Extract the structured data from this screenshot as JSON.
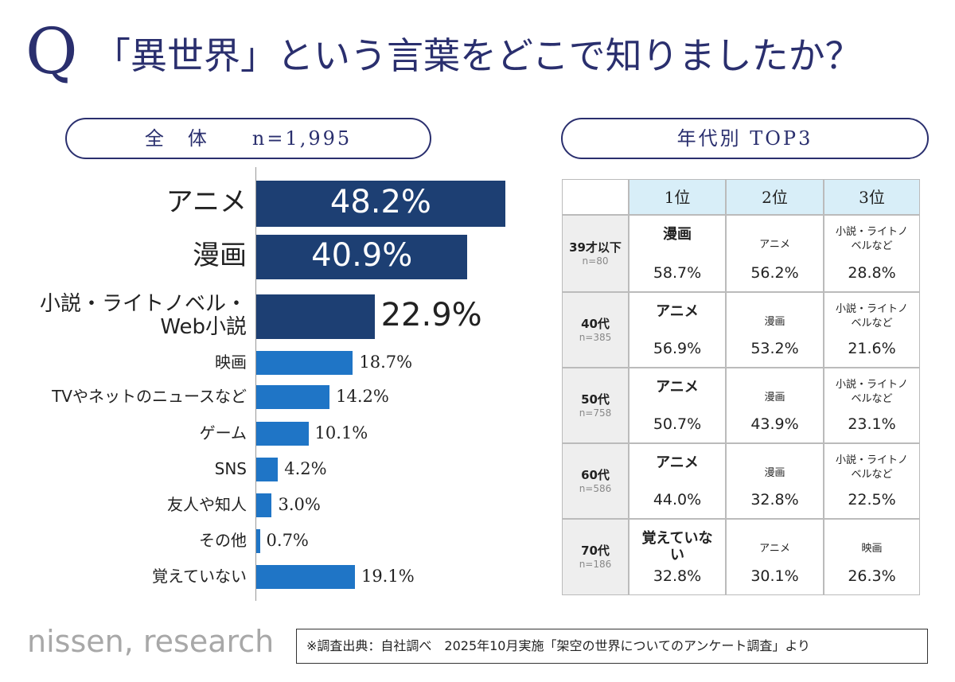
{
  "header": {
    "q": "Q",
    "title": "「異世界」という言葉をどこで知りましたか？"
  },
  "chart_data": {
    "type": "bar",
    "orientation": "horizontal",
    "panel_title": "全　体",
    "panel_n": "n=1,995",
    "categories": [
      "アニメ",
      "漫画",
      "小説・ライトノベル・\nWeb小説",
      "映画",
      "TVやネットのニュースなど",
      "ゲーム",
      "SNS",
      "友人や知人",
      "その他",
      "覚えていない"
    ],
    "values": [
      48.2,
      40.9,
      22.9,
      18.7,
      14.2,
      10.1,
      4.2,
      3.0,
      0.7,
      19.1
    ],
    "value_labels": [
      "48.2%",
      "40.9%",
      "22.9%",
      "18.7%",
      "14.2%",
      "10.1%",
      "4.2%",
      "3.0%",
      "0.7%",
      "19.1%"
    ],
    "colors": [
      "#1d3f73",
      "#1d3f73",
      "#1d3f73",
      "#1f75c6",
      "#1f75c6",
      "#1f75c6",
      "#1f75c6",
      "#1f75c6",
      "#1f75c6",
      "#1f75c6"
    ]
  },
  "table": {
    "title": "年代別 TOP3",
    "columns": [
      "1位",
      "2位",
      "3位"
    ],
    "rows": [
      {
        "age": "39才以下",
        "n": "n=80",
        "cells": [
          {
            "label": "漫画",
            "value": "58.7%"
          },
          {
            "label": "アニメ",
            "value": "56.2%"
          },
          {
            "label": "小説・ライトノベルなど",
            "value": "28.8%"
          }
        ]
      },
      {
        "age": "40代",
        "n": "n=385",
        "cells": [
          {
            "label": "アニメ",
            "value": "56.9%"
          },
          {
            "label": "漫画",
            "value": "53.2%"
          },
          {
            "label": "小説・ライトノベルなど",
            "value": "21.6%"
          }
        ]
      },
      {
        "age": "50代",
        "n": "n=758",
        "cells": [
          {
            "label": "アニメ",
            "value": "50.7%"
          },
          {
            "label": "漫画",
            "value": "43.9%"
          },
          {
            "label": "小説・ライトノベルなど",
            "value": "23.1%"
          }
        ]
      },
      {
        "age": "60代",
        "n": "n=586",
        "cells": [
          {
            "label": "アニメ",
            "value": "44.0%"
          },
          {
            "label": "漫画",
            "value": "32.8%"
          },
          {
            "label": "小説・ライトノベルなど",
            "value": "22.5%"
          }
        ]
      },
      {
        "age": "70代",
        "n": "n=186",
        "cells": [
          {
            "label": "覚えていない",
            "value": "32.8%"
          },
          {
            "label": "アニメ",
            "value": "30.1%"
          },
          {
            "label": "映画",
            "value": "26.3%"
          }
        ]
      }
    ]
  },
  "footer": {
    "logo": "nissen, research",
    "source": "※調査出典：自社調べ　2025年10月実施「架空の世界についてのアンケート調査」より"
  }
}
